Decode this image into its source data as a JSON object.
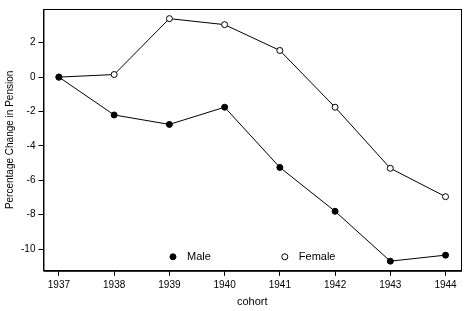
{
  "chart_data": {
    "type": "line",
    "x_label": "cohort",
    "y_label": "Percentage Change in Pension",
    "x": [
      1937,
      1938,
      1939,
      1940,
      1941,
      1942,
      1943,
      1944
    ],
    "series": [
      {
        "name": "Male",
        "color": "#000000",
        "marker": "filled_circle",
        "line_style": "solid",
        "values": [
          0,
          -2.2,
          -2.75,
          -1.75,
          -5.25,
          -7.8,
          -10.7,
          -10.35
        ]
      },
      {
        "name": "Female",
        "color": "#000000",
        "marker": "open_circle",
        "line_style": "solid",
        "values": [
          0,
          0.15,
          3.4,
          3.05,
          1.55,
          -1.75,
          -5.3,
          -6.95
        ]
      }
    ],
    "xlim": [
      1936.72,
      1944.28
    ],
    "xticks": [
      1937,
      1938,
      1939,
      1940,
      1941,
      1942,
      1943,
      1944
    ],
    "ylim": [
      -11.26,
      3.96
    ],
    "yticks": [
      -10,
      -8,
      -6,
      -4,
      -2,
      0,
      2
    ],
    "grid": false,
    "legend": "bottom"
  }
}
